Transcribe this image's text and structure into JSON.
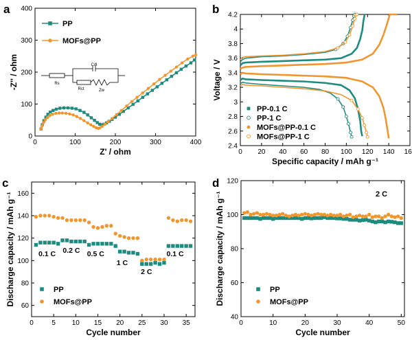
{
  "colors": {
    "pp": "#1e8b7f",
    "mofs": "#f0962e",
    "axis": "#000000"
  },
  "chart_data": [
    {
      "id": "a",
      "type": "line",
      "panel_label": "a",
      "xlabel": "Z' / ohm",
      "ylabel": "-Z'' / ohm",
      "xlim": [
        0,
        400
      ],
      "ylim": [
        0,
        400
      ],
      "xticks": [
        0,
        100,
        200,
        300,
        400
      ],
      "yticks": [
        0,
        100,
        200,
        300,
        400
      ],
      "legend_position": "top-left",
      "circuit_labels": [
        "Rs",
        "Rct",
        "Cdl",
        "Zw"
      ],
      "series": [
        {
          "name": "PP",
          "color_key": "pp",
          "marker": "square",
          "x": [
            15,
            18,
            22,
            27,
            32,
            38,
            45,
            53,
            62,
            72,
            82,
            92,
            102,
            112,
            122,
            131,
            140,
            148,
            155,
            161,
            166,
            172,
            178,
            185,
            192,
            200,
            210,
            220,
            232,
            244,
            256,
            268,
            280,
            292,
            304,
            316,
            328,
            340,
            352,
            364,
            376,
            388,
            397
          ],
          "y": [
            22,
            35,
            48,
            59,
            68,
            75,
            80,
            84,
            87,
            88,
            88,
            87,
            85,
            80,
            74,
            66,
            57,
            49,
            42,
            37,
            35,
            37,
            41,
            46,
            52,
            59,
            68,
            77,
            88,
            99,
            110,
            121,
            132,
            143,
            154,
            165,
            176,
            187,
            198,
            209,
            219,
            229,
            238
          ]
        },
        {
          "name": "MOFs@PP",
          "color_key": "mofs",
          "marker": "circle",
          "x": [
            15,
            17,
            21,
            26,
            31,
            37,
            44,
            52,
            60,
            68,
            77,
            86,
            95,
            104,
            113,
            122,
            131,
            139,
            146,
            152,
            157,
            161,
            167,
            174,
            182,
            192,
            203,
            215,
            228,
            241,
            254,
            268,
            282,
            296,
            310,
            324,
            338,
            352,
            366,
            380,
            393,
            400
          ],
          "y": [
            22,
            32,
            42,
            51,
            58,
            64,
            68,
            71,
            72,
            72,
            71,
            69,
            66,
            61,
            55,
            48,
            41,
            35,
            30,
            26,
            24,
            25,
            30,
            37,
            45,
            55,
            67,
            80,
            94,
            108,
            121,
            135,
            149,
            163,
            177,
            190,
            203,
            216,
            229,
            241,
            250,
            254
          ]
        }
      ]
    },
    {
      "id": "b",
      "type": "line",
      "panel_label": "b",
      "xlabel": "Specific capacity / mAh g⁻¹",
      "ylabel": "Voltage / V",
      "xlim": [
        0,
        160
      ],
      "ylim": [
        2.4,
        4.2
      ],
      "xticks": [
        0,
        20,
        40,
        60,
        80,
        100,
        120,
        140,
        160
      ],
      "yticks": [
        2.4,
        2.6,
        2.8,
        3.0,
        3.2,
        3.4,
        3.6,
        3.8,
        4.0,
        4.2
      ],
      "legend_position": "bottom-left",
      "series": [
        {
          "name": "PP-0.1 C",
          "color_key": "pp",
          "marker": "filled-square",
          "charge": {
            "x": [
              0,
              2,
              5,
              20,
              40,
              60,
              80,
              95,
              105,
              110,
              113,
              115,
              116,
              117,
              117
            ],
            "y": [
              3.5,
              3.53,
              3.54,
              3.55,
              3.56,
              3.57,
              3.58,
              3.6,
              3.66,
              3.74,
              3.86,
              3.98,
              4.1,
              4.18,
              4.2
            ]
          },
          "discharge": {
            "x": [
              0,
              2,
              5,
              20,
              40,
              60,
              80,
              95,
              103,
              108,
              111,
              113,
              114,
              115
            ],
            "y": [
              3.3,
              3.32,
              3.31,
              3.3,
              3.29,
              3.28,
              3.26,
              3.23,
              3.16,
              3.05,
              2.9,
              2.75,
              2.6,
              2.53
            ]
          }
        },
        {
          "name": "PP-1 C",
          "color_key": "pp",
          "marker": "open-circle",
          "charge": {
            "x": [
              0,
              2,
              5,
              20,
              40,
              60,
              80,
              90,
              97,
              101,
              104,
              106,
              107,
              108
            ],
            "y": [
              3.55,
              3.58,
              3.6,
              3.62,
              3.63,
              3.65,
              3.68,
              3.72,
              3.8,
              3.9,
              4.02,
              4.12,
              4.18,
              4.2
            ]
          },
          "discharge": {
            "x": [
              0,
              2,
              5,
              20,
              40,
              60,
              75,
              85,
              92,
              97,
              100,
              102,
              104,
              105
            ],
            "y": [
              3.25,
              3.27,
              3.26,
              3.24,
              3.22,
              3.2,
              3.17,
              3.12,
              3.04,
              2.93,
              2.8,
              2.7,
              2.58,
              2.52
            ]
          }
        },
        {
          "name": "MOFs@PP-0.1 C",
          "color_key": "mofs",
          "marker": "filled-circle",
          "charge": {
            "x": [
              0,
              2,
              5,
              20,
              40,
              60,
              80,
              100,
              115,
              125,
              131,
              135,
              138,
              140,
              141,
              145,
              148
            ],
            "y": [
              3.45,
              3.47,
              3.48,
              3.49,
              3.5,
              3.51,
              3.52,
              3.54,
              3.58,
              3.66,
              3.78,
              3.92,
              4.05,
              4.15,
              4.2,
              4.2,
              4.2
            ]
          },
          "discharge": {
            "x": [
              0,
              2,
              5,
              20,
              40,
              60,
              80,
              100,
              115,
              125,
              131,
              135,
              137,
              139,
              140
            ],
            "y": [
              3.38,
              3.4,
              3.39,
              3.38,
              3.37,
              3.36,
              3.35,
              3.33,
              3.28,
              3.2,
              3.08,
              2.92,
              2.78,
              2.6,
              2.5
            ]
          }
        },
        {
          "name": "MOFs@PP-1 C",
          "color_key": "mofs",
          "marker": "open-circle",
          "charge": {
            "x": [
              0,
              2,
              5,
              20,
              40,
              60,
              80,
              92,
              99,
              103,
              106,
              108,
              109,
              110
            ],
            "y": [
              3.58,
              3.61,
              3.62,
              3.63,
              3.64,
              3.66,
              3.69,
              3.74,
              3.82,
              3.92,
              4.04,
              4.14,
              4.19,
              4.2
            ]
          },
          "discharge": {
            "x": [
              0,
              2,
              5,
              20,
              40,
              60,
              80,
              95,
              105,
              111,
              115,
              117,
              119,
              120
            ],
            "y": [
              3.22,
              3.24,
              3.23,
              3.22,
              3.2,
              3.18,
              3.15,
              3.1,
              3.02,
              2.9,
              2.78,
              2.68,
              2.58,
              2.52
            ]
          }
        }
      ]
    },
    {
      "id": "c",
      "type": "scatter",
      "panel_label": "c",
      "xlabel": "Cycle number",
      "ylabel": "Discharge capacity / mAh g⁻¹",
      "xlim": [
        0,
        37
      ],
      "ylim": [
        50,
        170
      ],
      "xticks": [
        0,
        5,
        10,
        15,
        20,
        25,
        30,
        35
      ],
      "yticks": [
        60,
        80,
        100,
        120,
        140,
        160
      ],
      "legend_position": "bottom-left",
      "rate_labels": [
        {
          "text": "0.1 C",
          "x": 3.5,
          "y": 104
        },
        {
          "text": "0.2 C",
          "x": 9.0,
          "y": 107
        },
        {
          "text": "0.5 C",
          "x": 14.5,
          "y": 104
        },
        {
          "text": "1 C",
          "x": 20.5,
          "y": 96
        },
        {
          "text": "2 C",
          "x": 26.0,
          "y": 88
        },
        {
          "text": "0.1 C",
          "x": 32.5,
          "y": 104
        }
      ],
      "series": [
        {
          "name": "PP",
          "color_key": "pp",
          "marker": "square",
          "x": [
            1,
            2,
            3,
            4,
            5,
            6,
            7,
            8,
            9,
            10,
            11,
            12,
            13,
            14,
            15,
            16,
            17,
            18,
            19,
            20,
            21,
            22,
            23,
            24,
            25,
            26,
            27,
            28,
            29,
            30,
            31,
            32,
            33,
            34,
            35,
            36
          ],
          "y": [
            114,
            116,
            116,
            116,
            116,
            115,
            118,
            118,
            117,
            117,
            117,
            117,
            114,
            115,
            115,
            115,
            115,
            115,
            113,
            108,
            108,
            107,
            107,
            106,
            97,
            97,
            97,
            98,
            97,
            98,
            113,
            113,
            113,
            113,
            113,
            113
          ]
        },
        {
          "name": "MOFs@PP",
          "color_key": "mofs",
          "marker": "circle",
          "x": [
            1,
            2,
            3,
            4,
            5,
            6,
            7,
            8,
            9,
            10,
            11,
            12,
            13,
            14,
            15,
            16,
            17,
            18,
            19,
            20,
            21,
            22,
            23,
            24,
            25,
            26,
            27,
            28,
            29,
            30,
            31,
            32,
            33,
            34,
            35,
            36
          ],
          "y": [
            139,
            140,
            140,
            140,
            139,
            138,
            138,
            136,
            136,
            136,
            136,
            136,
            134,
            130,
            129,
            130,
            131,
            131,
            124,
            122,
            121,
            120,
            120,
            120,
            100,
            101,
            101,
            101,
            101,
            101,
            138,
            136,
            135,
            136,
            136,
            135
          ]
        }
      ]
    },
    {
      "id": "d",
      "type": "scatter",
      "panel_label": "d",
      "xlabel": "Cycle number",
      "ylabel": "Discharge capacity / mAh g⁻¹",
      "xlim": [
        0,
        51
      ],
      "ylim": [
        40,
        120
      ],
      "xticks": [
        0,
        10,
        20,
        30,
        40,
        50
      ],
      "yticks": [
        40,
        60,
        80,
        100,
        120
      ],
      "legend_position": "bottom-left",
      "rate_label": "2 C",
      "series": [
        {
          "name": "PP",
          "color_key": "pp",
          "marker": "square",
          "x": [
            1,
            2,
            3,
            4,
            5,
            6,
            7,
            8,
            9,
            10,
            11,
            12,
            13,
            14,
            15,
            16,
            17,
            18,
            19,
            20,
            21,
            22,
            23,
            24,
            25,
            26,
            27,
            28,
            29,
            30,
            31,
            32,
            33,
            34,
            35,
            36,
            37,
            38,
            39,
            40,
            41,
            42,
            43,
            44,
            45,
            46,
            47,
            48,
            49,
            50
          ],
          "y": [
            98,
            98,
            98,
            98,
            98,
            97.5,
            98,
            98,
            98,
            97.5,
            98,
            98,
            98,
            98,
            98,
            98,
            98,
            98,
            97.5,
            98,
            98,
            97.8,
            98,
            98,
            98,
            98.5,
            98,
            98,
            98,
            97.8,
            97.8,
            97.5,
            97.5,
            97,
            97,
            97,
            96.5,
            96.8,
            97,
            96.5,
            96,
            95.5,
            96,
            96,
            95.5,
            96,
            95.8,
            95.5,
            95,
            95
          ]
        },
        {
          "name": "MOFs@PP",
          "color_key": "mofs",
          "marker": "circle",
          "x": [
            1,
            2,
            3,
            4,
            5,
            6,
            7,
            8,
            9,
            10,
            11,
            12,
            13,
            14,
            15,
            16,
            17,
            18,
            19,
            20,
            21,
            22,
            23,
            24,
            25,
            26,
            27,
            28,
            29,
            30,
            31,
            32,
            33,
            34,
            35,
            36,
            37,
            38,
            39,
            40,
            41,
            42,
            43,
            44,
            45,
            46,
            47,
            48,
            49,
            50
          ],
          "y": [
            101,
            101.5,
            100,
            100.5,
            101,
            100,
            100,
            100.5,
            100,
            99.5,
            99.5,
            100,
            100.5,
            99.5,
            99,
            99.5,
            100,
            99.5,
            100,
            100.5,
            100,
            99.5,
            100,
            100.5,
            100,
            100,
            99.5,
            100,
            99.5,
            99.5,
            100,
            99,
            99.5,
            100,
            98.5,
            99,
            99.5,
            99,
            99,
            100,
            98.5,
            99,
            99,
            98,
            99,
            100,
            99,
            98.5,
            99,
            98
          ]
        }
      ]
    }
  ]
}
